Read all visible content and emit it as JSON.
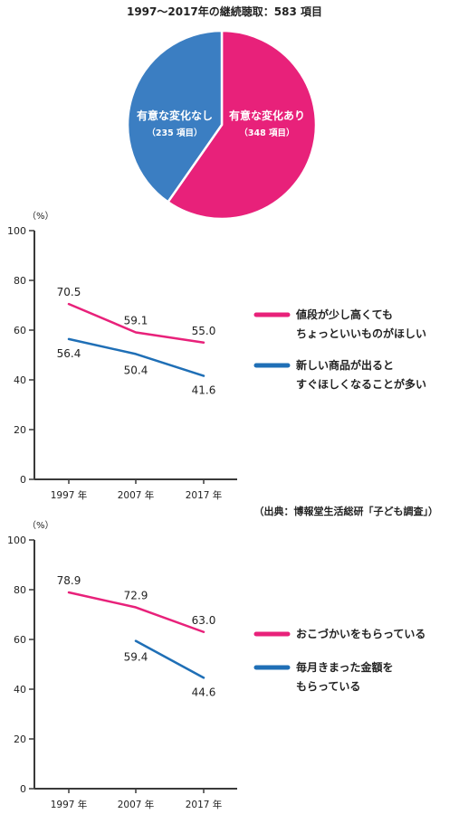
{
  "colors": {
    "pink": "#E8217A",
    "blue": "#3B7EC2",
    "lineBlue": "#1F6FB6",
    "axis": "#3a3a3a"
  },
  "chart_data": [
    {
      "type": "pie",
      "title": "1997～2017年の継続聴取：583 項目",
      "slices": [
        {
          "label": "有意な変化あり",
          "sub": "（348 項目）",
          "value": 348,
          "color": "#E8217A"
        },
        {
          "label": "有意な変化なし",
          "sub": "（235 項目）",
          "value": 235,
          "color": "#3B7EC2"
        }
      ]
    },
    {
      "type": "line",
      "y_unit": "（%）",
      "ylim": [
        0,
        100
      ],
      "yticks": [
        "0",
        "20",
        "40",
        "60",
        "80",
        "100"
      ],
      "categories": [
        "1997 年",
        "2007 年",
        "2017 年"
      ],
      "series": [
        {
          "name_lines": [
            "値段が少し高くても",
            "ちょっといいものがほしい"
          ],
          "color": "#E8217A",
          "values": [
            70.5,
            59.1,
            55.0
          ],
          "labels": [
            "70.5",
            "59.1",
            "55.0"
          ]
        },
        {
          "name_lines": [
            "新しい商品が出ると",
            "すぐほしくなることが多い"
          ],
          "color": "#1F6FB6",
          "values": [
            56.4,
            50.4,
            41.6
          ],
          "labels": [
            "56.4",
            "50.4",
            "41.6"
          ]
        }
      ]
    },
    {
      "type": "line",
      "y_unit": "（%）",
      "ylim": [
        0,
        100
      ],
      "yticks": [
        "0",
        "20",
        "40",
        "60",
        "80",
        "100"
      ],
      "categories": [
        "1997 年",
        "2007 年",
        "2017 年"
      ],
      "series": [
        {
          "name_lines": [
            "おこづかいをもらっている"
          ],
          "color": "#E8217A",
          "values": [
            78.9,
            72.9,
            63.0
          ],
          "labels": [
            "78.9",
            "72.9",
            "63.0"
          ]
        },
        {
          "name_lines": [
            "毎月きまった金額を",
            "もらっている"
          ],
          "color": "#1F6FB6",
          "values": [
            null,
            59.4,
            44.6
          ],
          "labels": [
            "",
            "59.4",
            "44.6"
          ]
        }
      ]
    }
  ],
  "source": "（出典：博報堂生活総研「子ども調査」）"
}
